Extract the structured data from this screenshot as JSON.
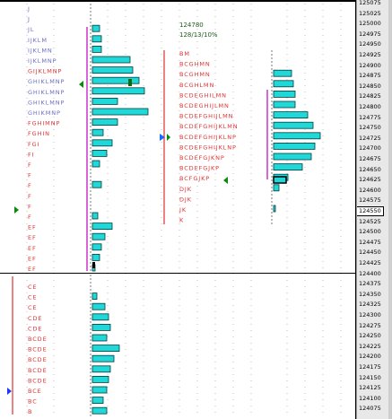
{
  "info": {
    "last_price": "124780",
    "ratio_text": "128/13/10%"
  },
  "colors": {
    "bar_fill": "#20d8d8",
    "bar_stroke": "#003c3c",
    "letter_blue": "#6a6ac8",
    "letter_red": "#e03030",
    "value_area_line": "#cc33cc",
    "range_line_red": "#e03030",
    "poc_marker": "#0a8a0a"
  },
  "price_axis": {
    "highlighted": "124550",
    "labels": [
      "125075",
      "125025",
      "125000",
      "124975",
      "124950",
      "124925",
      "124900",
      "124875",
      "124850",
      "124825",
      "124800",
      "124775",
      "124750",
      "124725",
      "124700",
      "124675",
      "124650",
      "124625",
      "124600",
      "124575",
      "124550",
      "124525",
      "124500",
      "124475",
      "124450",
      "124425",
      "124400",
      "124375",
      "124350",
      "124325",
      "124300",
      "124275",
      "124250",
      "124225",
      "124200",
      "124175",
      "124150",
      "124125",
      "124100",
      "124075"
    ]
  },
  "profile_left": [
    {
      "text": "J",
      "color": "blue",
      "bar": 0
    },
    {
      "text": "J",
      "color": "blue",
      "bar": 0
    },
    {
      "text": "JL",
      "color": "blue",
      "bar": 8
    },
    {
      "text": "IJKLM",
      "color": "blue",
      "bar": 10
    },
    {
      "text": "IJKLMN",
      "color": "blue",
      "bar": 10
    },
    {
      "text": "IJKLMNP",
      "color": "blue",
      "bar": 42
    },
    {
      "text": "GIJKLMNP",
      "color": "red",
      "bar": 45
    },
    {
      "text": "GHIKLMNP",
      "color": "blue",
      "bar": 52
    },
    {
      "text": "GHIKLMNP",
      "color": "blue",
      "bar": 58
    },
    {
      "text": "GHIKLMNP",
      "color": "blue",
      "bar": 28
    },
    {
      "text": "GHIKMNP",
      "color": "blue",
      "bar": 62
    },
    {
      "text": "FGHIMNP",
      "color": "red",
      "bar": 28
    },
    {
      "text": "FGHIN",
      "color": "red",
      "bar": 12
    },
    {
      "text": "FGI",
      "color": "red",
      "bar": 22
    },
    {
      "text": "FI",
      "color": "red",
      "bar": 16
    },
    {
      "text": "F",
      "color": "red",
      "bar": 8
    },
    {
      "text": "F",
      "color": "red",
      "bar": 0
    },
    {
      "text": "F",
      "color": "red",
      "bar": 10
    },
    {
      "text": "F",
      "color": "red",
      "bar": 0
    },
    {
      "text": "F",
      "color": "red",
      "bar": 0
    },
    {
      "text": "F",
      "color": "red",
      "bar": 6
    },
    {
      "text": "EF",
      "color": "red",
      "bar": 22
    },
    {
      "text": "EF",
      "color": "red",
      "bar": 14
    },
    {
      "text": "EF",
      "color": "red",
      "bar": 10
    },
    {
      "text": "EF",
      "color": "red",
      "bar": 8
    },
    {
      "text": "EF",
      "color": "red",
      "bar": 3
    }
  ],
  "profile_right": [
    {
      "text": "BM",
      "color": "red",
      "bar": 0
    },
    {
      "text": "BCGHMN",
      "color": "red",
      "bar": 0
    },
    {
      "text": "BCGHMN",
      "color": "red",
      "bar": 20
    },
    {
      "text": "BCGHLMN",
      "color": "red",
      "bar": 22
    },
    {
      "text": "BCDEGHILMN",
      "color": "red",
      "bar": 24
    },
    {
      "text": "BCDEGHIJLMN",
      "color": "red",
      "bar": 24
    },
    {
      "text": "BCDEFGHIJLMN",
      "color": "red",
      "bar": 38
    },
    {
      "text": "BCDEFGHIJKLMN",
      "color": "red",
      "bar": 44
    },
    {
      "text": "BCDEFGHIJKLNP",
      "color": "red",
      "bar": 52
    },
    {
      "text": "BCDEFGHIJKLNP",
      "color": "red",
      "bar": 46
    },
    {
      "text": "BCDEFGJKNP",
      "color": "red",
      "bar": 42
    },
    {
      "text": "BCDEFGJKP",
      "color": "red",
      "bar": 32
    },
    {
      "text": "BCFGJKP",
      "color": "red",
      "bar": 16
    },
    {
      "text": "DJK",
      "color": "red",
      "bar": 6
    },
    {
      "text": "DJK",
      "color": "red",
      "bar": 0
    },
    {
      "text": "JK",
      "color": "red",
      "bar": 2
    },
    {
      "text": "K",
      "color": "red",
      "bar": 0
    }
  ],
  "profile_bottom": [
    {
      "text": "CE",
      "color": "red",
      "bar": 0
    },
    {
      "text": "CE",
      "color": "red",
      "bar": 5
    },
    {
      "text": "CE",
      "color": "red",
      "bar": 14
    },
    {
      "text": "CDE",
      "color": "red",
      "bar": 18
    },
    {
      "text": "CDE",
      "color": "red",
      "bar": 20
    },
    {
      "text": "BCDE",
      "color": "red",
      "bar": 16
    },
    {
      "text": "BCDE",
      "color": "red",
      "bar": 30
    },
    {
      "text": "BCDE",
      "color": "red",
      "bar": 24
    },
    {
      "text": "BCDE",
      "color": "red",
      "bar": 20
    },
    {
      "text": "BCDE",
      "color": "red",
      "bar": 18
    },
    {
      "text": "BCE",
      "color": "red",
      "bar": 16
    },
    {
      "text": "BC",
      "color": "red",
      "bar": 12
    },
    {
      "text": "B",
      "color": "red",
      "bar": 16
    },
    {
      "text": "B",
      "color": "red",
      "bar": 0
    }
  ]
}
